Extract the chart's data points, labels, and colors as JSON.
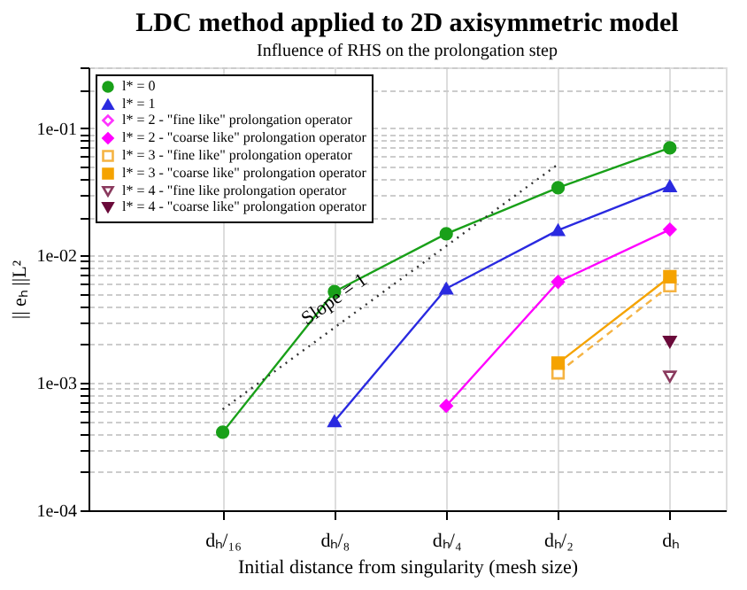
{
  "chart_data": {
    "type": "line",
    "title": "LDC method applied to 2D axisymmetric model",
    "subtitle": "Influence of RHS on the prolongation step",
    "xlabel": "Initial distance from singularity (mesh size)",
    "ylabel": "|| eₕ ||L²",
    "log": "y",
    "grid": true,
    "legend": "top left",
    "categories": [
      "dₕ/₁₆",
      "dₕ/₈",
      "dₕ/₄",
      "dₕ/₂",
      "dₕ"
    ],
    "ylim": [
      0.0001,
      0.3
    ],
    "yticks": [
      {
        "value": 0.0001,
        "label": "1e-04"
      },
      {
        "value": 0.0002,
        "label": null
      },
      {
        "value": 0.0003,
        "label": null
      },
      {
        "value": 0.0004,
        "label": null
      },
      {
        "value": 0.0005,
        "label": null
      },
      {
        "value": 0.0006,
        "label": null
      },
      {
        "value": 0.0007,
        "label": null
      },
      {
        "value": 0.0008,
        "label": null
      },
      {
        "value": 0.0009,
        "label": null
      },
      {
        "value": 0.001,
        "label": "1e-03"
      },
      {
        "value": 0.002,
        "label": null
      },
      {
        "value": 0.003,
        "label": null
      },
      {
        "value": 0.004,
        "label": null
      },
      {
        "value": 0.005,
        "label": null
      },
      {
        "value": 0.006,
        "label": null
      },
      {
        "value": 0.007,
        "label": null
      },
      {
        "value": 0.008,
        "label": null
      },
      {
        "value": 0.009,
        "label": null
      },
      {
        "value": 0.01,
        "label": "1e-02"
      },
      {
        "value": 0.02,
        "label": null
      },
      {
        "value": 0.03,
        "label": null
      },
      {
        "value": 0.04,
        "label": null
      },
      {
        "value": 0.05,
        "label": null
      },
      {
        "value": 0.06,
        "label": null
      },
      {
        "value": 0.07,
        "label": null
      },
      {
        "value": 0.08,
        "label": null
      },
      {
        "value": 0.09,
        "label": null
      },
      {
        "value": 0.1,
        "label": "1e-01"
      },
      {
        "value": 0.2,
        "label": null
      },
      {
        "value": 0.3,
        "label": null
      }
    ],
    "series": [
      {
        "name": "l* = 0",
        "color": "#19a019",
        "marker": "circle",
        "line_style": "solid",
        "values": [
          0.00041,
          0.0052,
          0.0148,
          0.034,
          0.07
        ]
      },
      {
        "name": "l* = 1",
        "color": "#2a2ae0",
        "marker": "triangle",
        "line_style": "solid",
        "values": [
          null,
          0.0005,
          0.0055,
          0.0158,
          0.035
        ]
      },
      {
        "name": "l* = 2 - \"fine like\" prolongation operator",
        "color": "#ff33ff",
        "marker": "diamond",
        "line_style": "dashed",
        "values": [
          null,
          null,
          null,
          null,
          null
        ]
      },
      {
        "name": "l* = 2 - \"coarse like\" prolongation operator",
        "color": "#ff00ff",
        "marker": "diamond",
        "line_style": "solid",
        "values": [
          null,
          null,
          0.00066,
          0.0062,
          0.016
        ]
      },
      {
        "name": "l* = 3 - \"fine like\" prolongation operator",
        "color": "#f5b342",
        "marker": "square",
        "line_style": "dashed",
        "values": [
          null,
          null,
          null,
          0.0012,
          0.0058
        ]
      },
      {
        "name": "l* = 3 - \"coarse like\" prolongation operator",
        "color": "#f5a300",
        "marker": "square",
        "line_style": "solid",
        "values": [
          null,
          null,
          null,
          0.00143,
          0.0068
        ]
      },
      {
        "name": "l* = 4 - \"fine like prolongation operator",
        "color": "#8a3a5e",
        "marker": "triangle-down",
        "line_style": "dashed",
        "values": [
          null,
          null,
          null,
          null,
          0.00112
        ]
      },
      {
        "name": "l* = 4 - \"coarse like\" prolongation operator",
        "color": "#6a0a3a",
        "marker": "triangle-down",
        "line_style": "solid",
        "values": [
          null,
          null,
          null,
          null,
          0.0021
        ]
      },
      {
        "type": "line",
        "color": "#333333",
        "marker": "none",
        "line_style": "dotted",
        "x": [
          "dₕ/₁₆",
          "dₕ/₂"
        ],
        "values": [
          0.00062,
          0.052
        ]
      }
    ],
    "annotations": [
      {
        "text": "Slope = 1",
        "x": "dₕ/₈",
        "y": 0.0045
      }
    ]
  }
}
